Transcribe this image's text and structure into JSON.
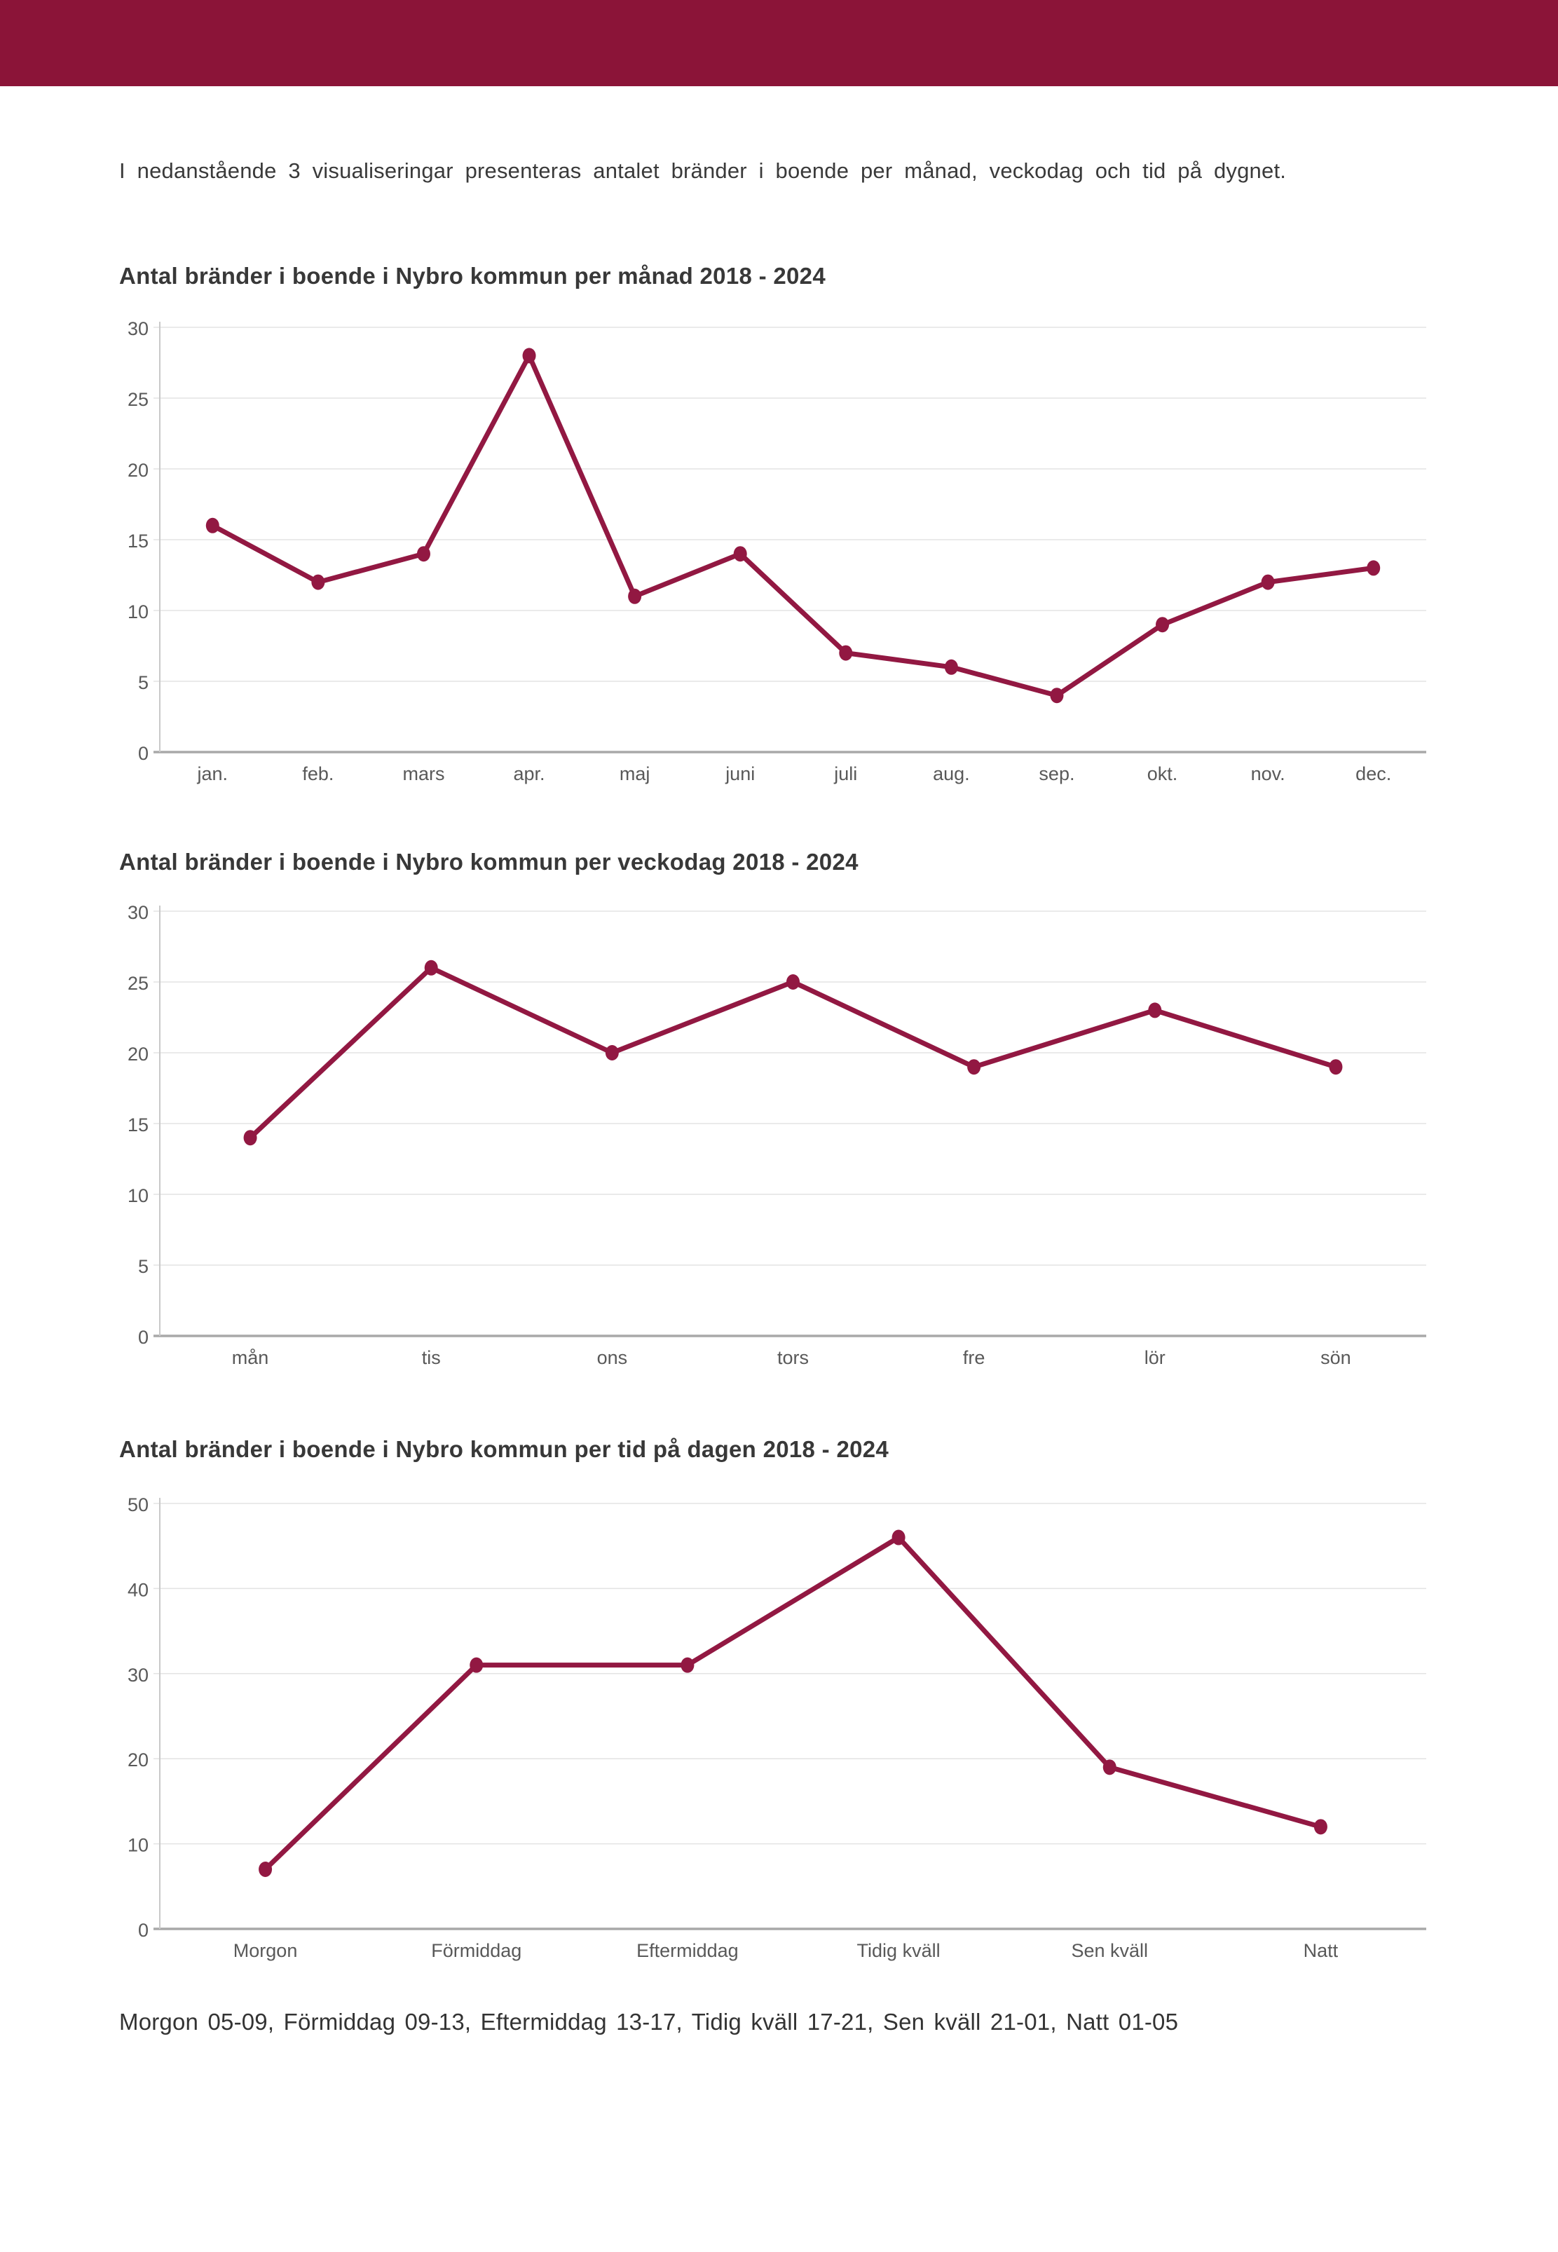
{
  "page": {
    "intro": "I nedanstående 3 visualiseringar presenteras antalet bränder i boende per månad, veckodag och tid på dygnet.",
    "footnote": "Morgon 05-09, Förmiddag 09-13, Eftermiddag 13-17, Tidig kväll 17-21, Sen kväll 21-01, Natt 01-05",
    "header_color": "#8B1438",
    "line_color": "#921842",
    "grid_color": "#e3e3e3",
    "baseline_color": "#a9a9a9",
    "axis_label_color": "#595959"
  },
  "chart_data": [
    {
      "type": "line",
      "title": "Antal bränder i boende i Nybro kommun per månad 2018 - 2024",
      "categories": [
        "jan.",
        "feb.",
        "mars",
        "apr.",
        "maj",
        "juni",
        "juli",
        "aug.",
        "sep.",
        "okt.",
        "nov.",
        "dec."
      ],
      "values": [
        16,
        12,
        14,
        28,
        11,
        14,
        7,
        6,
        4,
        9,
        12,
        13
      ],
      "xlabel": "",
      "ylabel": "",
      "ylim": [
        0,
        30
      ],
      "ytick": 5,
      "grid": true,
      "legend": "none"
    },
    {
      "type": "line",
      "title": "Antal bränder i boende i Nybro kommun per veckodag 2018 - 2024",
      "categories": [
        "mån",
        "tis",
        "ons",
        "tors",
        "fre",
        "lör",
        "sön"
      ],
      "values": [
        14,
        26,
        20,
        25,
        19,
        23,
        19
      ],
      "xlabel": "",
      "ylabel": "",
      "ylim": [
        0,
        30
      ],
      "ytick": 5,
      "grid": true,
      "legend": "none"
    },
    {
      "type": "line",
      "title": "Antal bränder i boende i Nybro kommun per tid på dagen 2018 - 2024",
      "categories": [
        "Morgon",
        "Förmiddag",
        "Eftermiddag",
        "Tidig kväll",
        "Sen kväll",
        "Natt"
      ],
      "values": [
        7,
        31,
        31,
        46,
        19,
        12
      ],
      "xlabel": "",
      "ylabel": "",
      "ylim": [
        0,
        50
      ],
      "ytick": 10,
      "grid": true,
      "legend": "none"
    }
  ]
}
